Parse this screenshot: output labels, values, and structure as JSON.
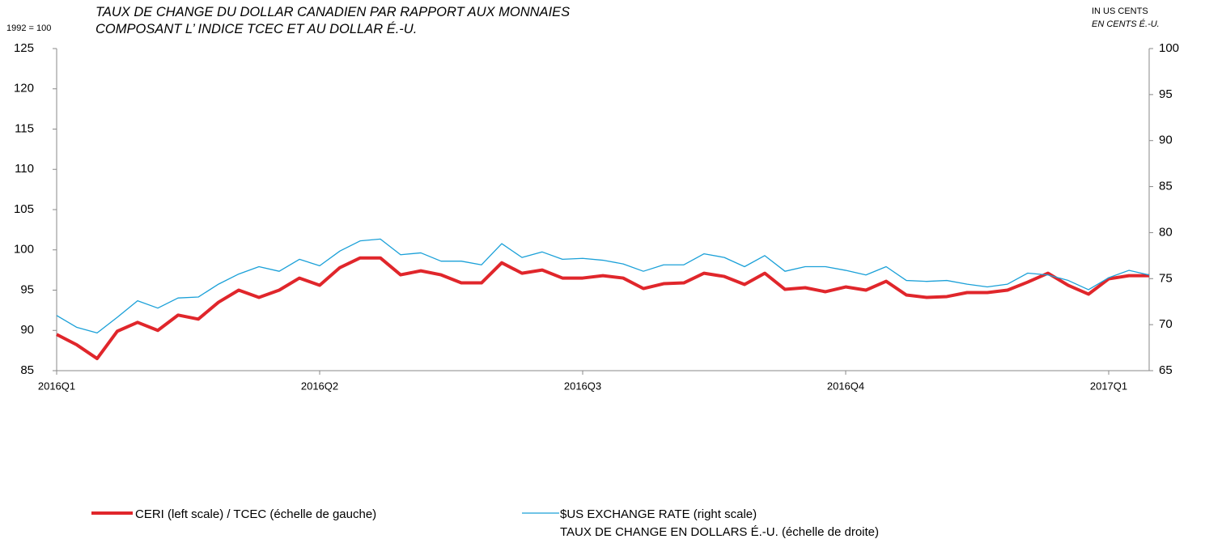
{
  "chart_data": {
    "type": "line",
    "title": "TAUX DE CHANGE DU DOLLAR CANADIEN PAR RAPPORT AUX MONNAIES\nCOMPOSANT L’ INDICE TCEC ET AU DOLLAR É.-U.",
    "y_label": "1992 = 100",
    "y2_label": "IN US CENTS",
    "y2_label_fr": "EN CENTS É.-U.",
    "categories": [
      "2016Q1",
      null,
      null,
      null,
      null,
      null,
      null,
      null,
      null,
      null,
      null,
      null,
      null,
      "2016Q2",
      null,
      null,
      null,
      null,
      null,
      null,
      null,
      null,
      null,
      null,
      null,
      null,
      "2016Q3",
      null,
      null,
      null,
      null,
      null,
      null,
      null,
      null,
      null,
      null,
      null,
      null,
      "2016Q4",
      null,
      null,
      null,
      null,
      null,
      null,
      null,
      null,
      null,
      null,
      null,
      null,
      "2017Q1",
      null,
      null
    ],
    "series": [
      {
        "name": "CERI (left scale) / TCEC (échelle de gauche)",
        "color": "#e0262b",
        "axis": "y",
        "values": [
          89.5,
          88.2,
          86.5,
          89.9,
          91,
          90,
          91.9,
          91.4,
          93.5,
          95,
          94.1,
          95,
          96.5,
          95.6,
          97.8,
          99,
          99,
          96.9,
          97.4,
          96.9,
          95.9,
          95.9,
          98.4,
          97.1,
          97.5,
          96.5,
          96.5,
          96.8,
          96.5,
          95.2,
          95.8,
          95.9,
          97.1,
          96.7,
          95.7,
          97.1,
          95.1,
          95.3,
          94.8,
          95.4,
          95,
          96.1,
          94.4,
          94.1,
          94.2,
          94.7,
          94.7,
          95,
          96,
          97.1,
          95.6,
          94.5,
          96.4,
          96.8,
          96.8
        ]
      },
      {
        "name": "$US EXCHANGE RATE (right scale)\nTAUX DE CHANGE EN DOLLARS É.-U. (échelle de droite)",
        "color": "#1aa0d8",
        "axis": "y2",
        "values": [
          71.0,
          69.7,
          69.1,
          70.8,
          72.6,
          71.8,
          72.9,
          73.0,
          74.4,
          75.5,
          76.3,
          75.8,
          77.1,
          76.4,
          78.0,
          79.1,
          79.3,
          77.6,
          77.8,
          76.9,
          76.9,
          76.5,
          78.8,
          77.3,
          77.9,
          77.1,
          77.2,
          77.0,
          76.6,
          75.8,
          76.5,
          76.5,
          77.7,
          77.3,
          76.3,
          77.5,
          75.8,
          76.3,
          76.3,
          75.9,
          75.4,
          76.3,
          74.8,
          74.7,
          74.8,
          74.4,
          74.1,
          74.4,
          75.6,
          75.4,
          74.8,
          73.8,
          75.1,
          75.9,
          75.4
        ]
      }
    ],
    "ylim": [
      85,
      125
    ],
    "yticks": [
      85,
      90,
      95,
      100,
      105,
      110,
      115,
      120,
      125
    ],
    "y2lim": [
      65,
      100
    ],
    "y2ticks": [
      65,
      70,
      75,
      80,
      85,
      90,
      95,
      100
    ]
  }
}
